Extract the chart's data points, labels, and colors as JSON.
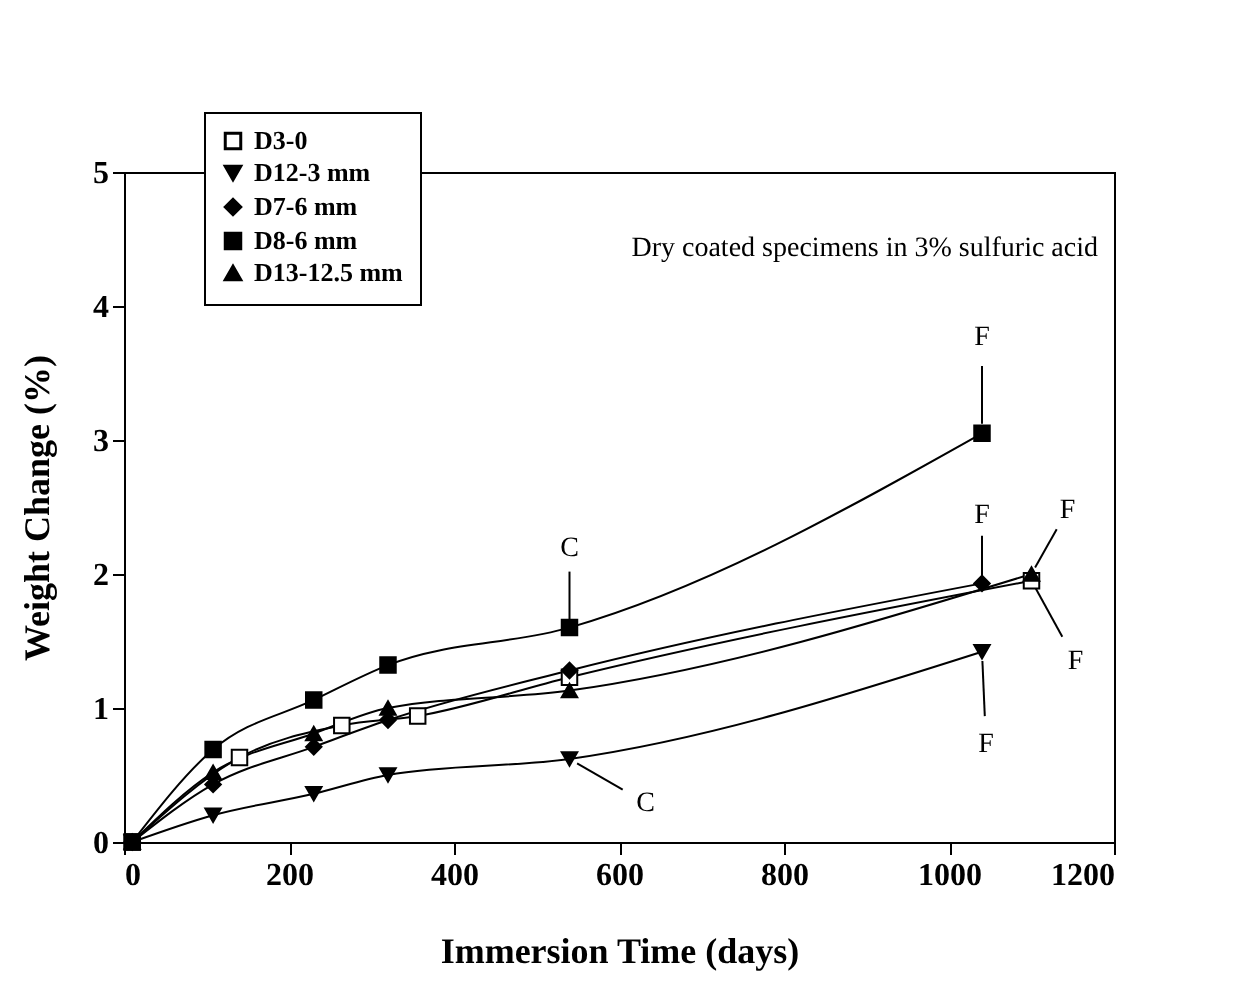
{
  "chart_data": {
    "type": "line",
    "xlabel": "Immersion Time (days)",
    "ylabel": "Weight Change (%)",
    "xlim": [
      0,
      1200
    ],
    "xticks": [
      0,
      200,
      400,
      600,
      800,
      {
        "value": 1000,
        "label": "1000"
      },
      {
        "value": 1200,
        "label": "1200"
      }
    ],
    "ylim": [
      0,
      5
    ],
    "yticks": [
      {
        "value": 0,
        "label": "0"
      },
      {
        "value": 1,
        "label": "1"
      },
      {
        "value": 2,
        "label": "2"
      },
      {
        "value": 3,
        "label": "3"
      },
      {
        "value": 4,
        "label": "4"
      },
      {
        "value": 5,
        "label": "5"
      }
    ],
    "grid": false,
    "legend": "top left",
    "line_style": "solid",
    "series": [
      {
        "name": "D3-0",
        "color": "#000000",
        "marker": "square-open",
        "x": [
          10,
          140,
          264,
          356,
          540,
          1100
        ],
        "values": [
          0,
          0.63,
          0.87,
          0.94,
          1.23,
          1.95
        ]
      },
      {
        "name": "D12-3 mm",
        "color": "#000000",
        "marker": "triangle-down",
        "x": [
          10,
          108,
          230,
          320,
          540,
          1040
        ],
        "values": [
          0,
          0.2,
          0.36,
          0.5,
          0.62,
          1.42
        ]
      },
      {
        "name": "D7-6 mm",
        "color": "#000000",
        "marker": "diamond",
        "x": [
          10,
          108,
          230,
          320,
          540,
          1040
        ],
        "values": [
          0,
          0.43,
          0.71,
          0.91,
          1.28,
          1.93
        ]
      },
      {
        "name": "D8-6 mm",
        "color": "#000000",
        "marker": "square",
        "x": [
          10,
          108,
          230,
          320,
          540,
          1040
        ],
        "values": [
          0,
          0.69,
          1.06,
          1.32,
          1.6,
          3.05
        ]
      },
      {
        "name": "D13-12.5 mm",
        "color": "#000000",
        "marker": "triangle",
        "x": [
          10,
          108,
          230,
          320,
          540,
          1100
        ],
        "values": [
          0,
          0.52,
          0.81,
          1.0,
          1.13,
          2.0
        ]
      }
    ],
    "annotations": [
      "Dry coated specimens in 3% sulfuric acid",
      {
        "text": "C",
        "x": 540,
        "y": 1.6
      },
      {
        "text": "C",
        "x": 540,
        "y": 0.62
      },
      {
        "text": "F",
        "x": 1040,
        "y": 3.05
      },
      {
        "text": "F",
        "x": 1040,
        "y": 1.93
      },
      {
        "text": "F",
        "x": 1100,
        "y": 2.0
      },
      {
        "text": "F",
        "x": 1100,
        "y": 1.95
      },
      {
        "text": "F",
        "x": 1040,
        "y": 1.42
      }
    ]
  }
}
